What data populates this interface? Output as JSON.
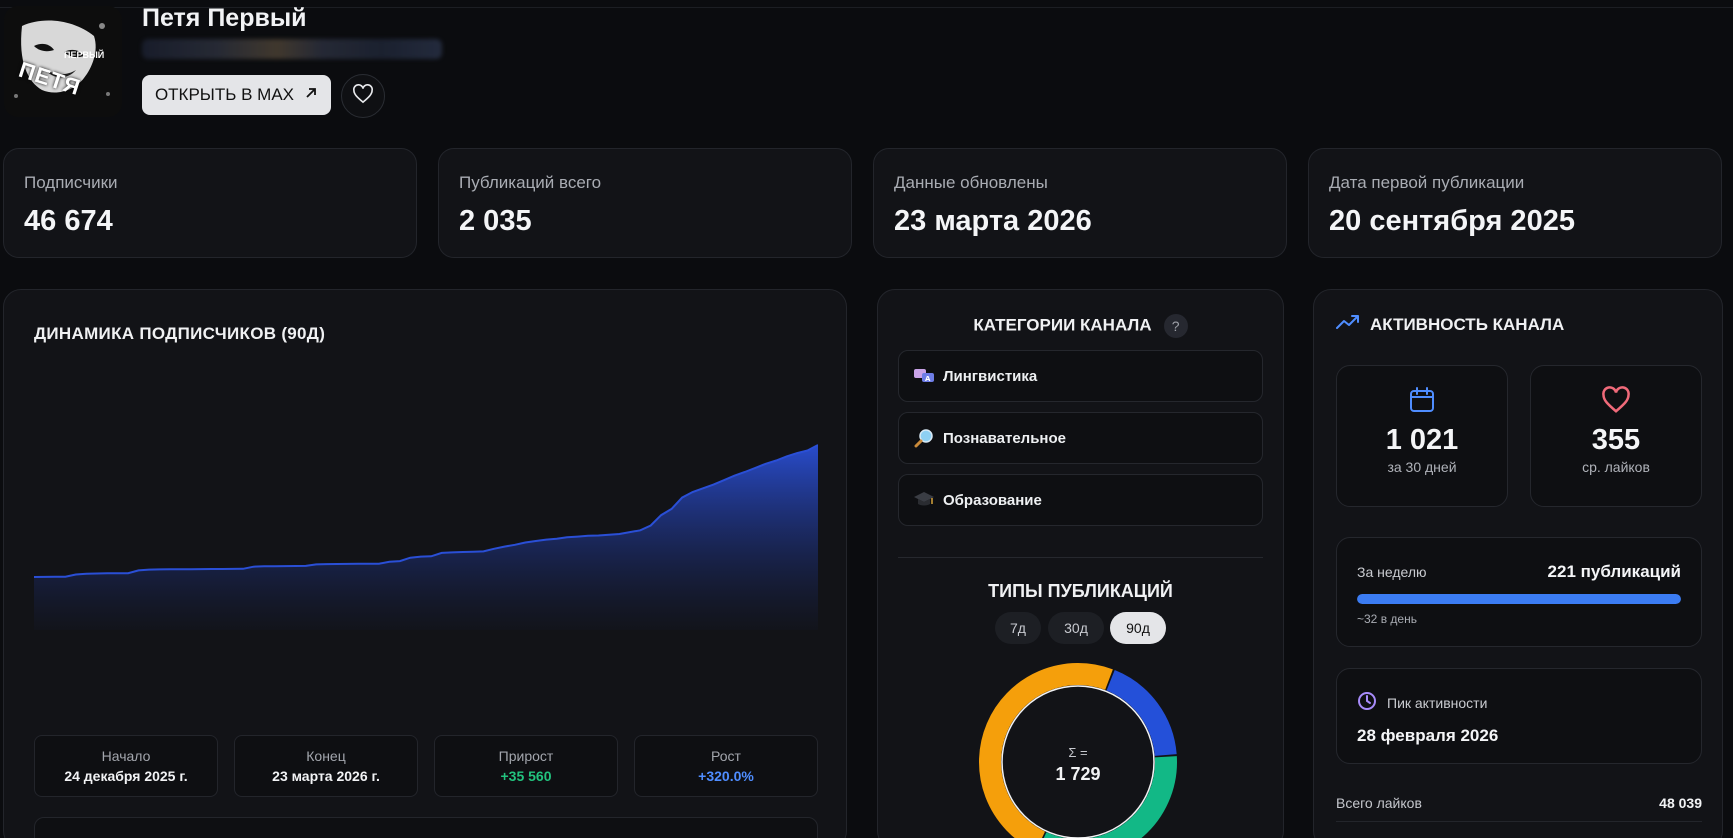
{
  "channel": {
    "name": "Петя Первый",
    "avatar_text_top": "ПЕРВЫЙ",
    "avatar_text_main": "ПЕТЯ",
    "open_button_label": "ОТКРЫТЬ В MAX"
  },
  "stats": [
    {
      "label": "Подписчики",
      "value": "46 674"
    },
    {
      "label": "Публикаций всего",
      "value": "2 035"
    },
    {
      "label": "Данные обновлены",
      "value": "23 марта 2026"
    },
    {
      "label": "Дата первой публикации",
      "value": "20 сентября 2025"
    }
  ],
  "dynamics": {
    "title": "ДИНАМИКА ПОДПИСЧИКОВ (90Д)",
    "summary": [
      {
        "label": "Начало",
        "value": "24 декабря 2025 г.",
        "tone": "default"
      },
      {
        "label": "Конец",
        "value": "23 марта 2026 г.",
        "tone": "default"
      },
      {
        "label": "Прирост",
        "value": "+35 560",
        "tone": "green"
      },
      {
        "label": "Рост",
        "value": "+320.0%",
        "tone": "blue"
      }
    ]
  },
  "chart_data": {
    "type": "area",
    "title": "ДИНАМИКА ПОДПИСЧИКОВ (90Д)",
    "xlabel": "",
    "ylabel": "",
    "x_range": [
      "24 декабря 2025 г.",
      "23 марта 2026 г."
    ],
    "y": [
      11114,
      11150,
      11180,
      11200,
      11800,
      12000,
      12050,
      12100,
      12120,
      12150,
      12900,
      13100,
      13150,
      13180,
      13200,
      13220,
      13240,
      13260,
      13280,
      13300,
      13310,
      13900,
      14000,
      14030,
      14060,
      14080,
      14100,
      14500,
      14600,
      14620,
      14640,
      14660,
      14680,
      14700,
      15200,
      15400,
      16300,
      16600,
      16700,
      17600,
      17750,
      17850,
      17900,
      18000,
      18700,
      19300,
      19800,
      20400,
      20800,
      21200,
      21400,
      21800,
      22000,
      22200,
      22300,
      22500,
      22700,
      23200,
      23700,
      25000,
      27800,
      29500,
      32500,
      34000,
      35000,
      36000,
      37200,
      38400,
      39400,
      40500,
      41600,
      42500,
      43600,
      44500,
      45200,
      46674
    ],
    "grid": false,
    "color": "#2a4fd6"
  },
  "categories": {
    "title": "КАТЕГОРИИ КАНАЛА",
    "help": "?",
    "items": [
      {
        "label": "Лингвистика",
        "icon": "speech-bubbles-icon"
      },
      {
        "label": "Познавательное",
        "icon": "magnifier-icon"
      },
      {
        "label": "Образование",
        "icon": "graduation-cap-icon"
      }
    ]
  },
  "types": {
    "title": "ТИПЫ ПУБЛИКАЦИЙ",
    "periods": [
      "7д",
      "30д",
      "90д"
    ],
    "active_period": "90д",
    "sigma": "Σ =",
    "total": "1 729",
    "segments": [
      {
        "share": 0.18,
        "color": "#2450d9"
      },
      {
        "share": 0.33,
        "color": "#12b886"
      },
      {
        "share": 0.49,
        "color": "#f59f0b"
      }
    ]
  },
  "activity": {
    "title": "АКТИВНОСТЬ КАНАЛА",
    "posts_30d": "1 021",
    "posts_30d_label": "за 30 дней",
    "avg_likes": "355",
    "avg_likes_label": "ср. лайков",
    "week_label": "За неделю",
    "week_value": "221 публикаций",
    "week_fill": 1.0,
    "week_note": "~32 в день",
    "peak_label": "Пик активности",
    "peak_date": "28 февраля 2026",
    "likes_label": "Всего лайков",
    "likes_value": "48 039"
  },
  "colors": {
    "accent_blue": "#3b7cf3",
    "heart_red": "#f06a7a",
    "clock_purple": "#a78bfa",
    "green": "#22c37e"
  }
}
